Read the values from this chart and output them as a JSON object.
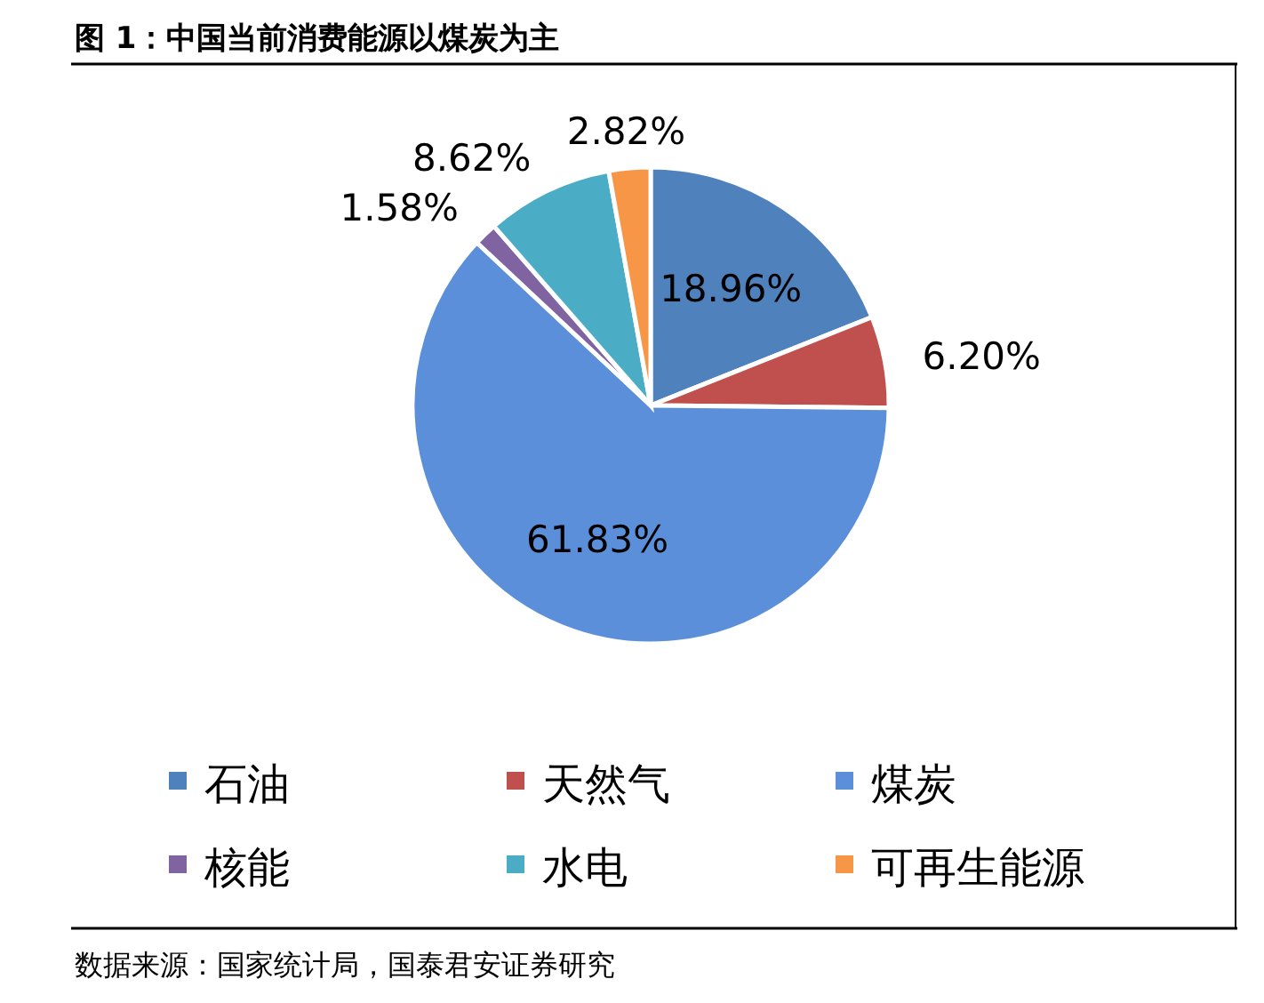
{
  "chart_data": {
    "type": "pie",
    "title": "图 1：中国当前消费能源以煤炭为主",
    "categories": [
      "石油",
      "天然气",
      "煤炭",
      "核能",
      "水电",
      "可再生能源"
    ],
    "values": [
      18.96,
      6.2,
      61.83,
      1.58,
      8.62,
      2.82
    ],
    "colors": [
      "#4f81bd",
      "#c0504d",
      "#5b8fd9",
      "#8064a2",
      "#4bacc6",
      "#f79646"
    ],
    "value_labels": [
      "18.96%",
      "6.20%",
      "61.83%",
      "1.58%",
      "8.62%",
      "2.82%"
    ],
    "legend": "bottom",
    "annotations": [
      "数据来源：国家统计局，国泰君安证券研究"
    ]
  }
}
